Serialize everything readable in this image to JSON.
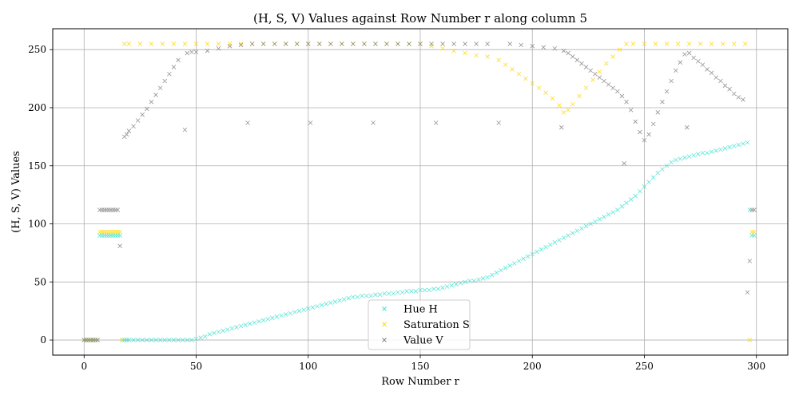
{
  "chart_data": {
    "type": "scatter",
    "title": "(H, S, V) Values against Row Number r along column 5",
    "xlabel": "Row Number r",
    "ylabel": "(H, S, V) Values",
    "xlim": [
      -14,
      314
    ],
    "ylim": [
      -13,
      268
    ],
    "xticks": [
      0,
      50,
      100,
      150,
      200,
      250,
      300
    ],
    "yticks": [
      0,
      50,
      100,
      150,
      200,
      250
    ],
    "grid": true,
    "legend": "bottom-center",
    "marker": "x",
    "series": [
      {
        "name": "Hue H",
        "color": "#40e0d0",
        "x": [
          0,
          1,
          2,
          3,
          4,
          5,
          6,
          7,
          8,
          9,
          10,
          11,
          12,
          13,
          14,
          15,
          16,
          17,
          18,
          19,
          20,
          22,
          24,
          26,
          28,
          30,
          32,
          34,
          36,
          38,
          40,
          42,
          44,
          46,
          48,
          50,
          52,
          54,
          56,
          58,
          60,
          62,
          64,
          66,
          68,
          70,
          72,
          74,
          76,
          78,
          80,
          82,
          84,
          86,
          88,
          90,
          92,
          94,
          96,
          98,
          100,
          102,
          104,
          106,
          108,
          110,
          112,
          114,
          116,
          118,
          120,
          122,
          124,
          126,
          128,
          130,
          132,
          134,
          136,
          138,
          140,
          142,
          144,
          146,
          148,
          150,
          152,
          154,
          156,
          158,
          160,
          162,
          164,
          166,
          168,
          170,
          172,
          174,
          176,
          178,
          180,
          182,
          184,
          186,
          188,
          190,
          192,
          194,
          196,
          198,
          200,
          202,
          204,
          206,
          208,
          210,
          212,
          214,
          216,
          218,
          220,
          222,
          224,
          226,
          228,
          230,
          232,
          234,
          236,
          238,
          240,
          242,
          244,
          246,
          248,
          250,
          252,
          254,
          256,
          258,
          260,
          262,
          264,
          266,
          268,
          270,
          272,
          274,
          276,
          278,
          280,
          282,
          284,
          286,
          288,
          290,
          292,
          294,
          296,
          297,
          298,
          299
        ],
        "y": [
          0,
          0,
          0,
          0,
          0,
          0,
          0,
          90,
          90,
          90,
          90,
          90,
          90,
          90,
          90,
          90,
          90,
          0,
          0,
          0,
          0,
          0,
          0,
          0,
          0,
          0,
          0,
          0,
          0,
          0,
          0,
          0,
          0,
          0,
          0,
          1,
          2,
          3,
          5,
          6,
          7,
          8,
          9,
          10,
          11,
          12,
          13,
          14,
          15,
          16,
          17,
          18,
          19,
          20,
          21,
          22,
          23,
          24,
          25,
          26,
          27,
          28,
          29,
          30,
          31,
          32,
          33,
          34,
          35,
          36,
          37,
          37,
          38,
          38,
          38,
          39,
          39,
          40,
          40,
          40,
          41,
          41,
          42,
          42,
          42,
          43,
          43,
          43,
          44,
          44,
          45,
          46,
          47,
          48,
          49,
          50,
          51,
          51,
          52,
          53,
          54,
          56,
          58,
          60,
          62,
          64,
          66,
          68,
          70,
          72,
          74,
          76,
          78,
          80,
          82,
          84,
          86,
          88,
          90,
          92,
          94,
          96,
          98,
          100,
          102,
          104,
          106,
          108,
          110,
          112,
          115,
          118,
          121,
          124,
          128,
          132,
          136,
          140,
          144,
          147,
          150,
          153,
          155,
          156,
          157,
          158,
          159,
          160,
          161,
          161,
          162,
          163,
          164,
          165,
          166,
          167,
          168,
          169,
          170,
          112,
          90,
          90
        ]
      },
      {
        "name": "Saturation S",
        "color": "#ffd700",
        "x": [
          0,
          1,
          2,
          3,
          4,
          5,
          6,
          7,
          8,
          9,
          10,
          11,
          12,
          13,
          14,
          15,
          16,
          17,
          18,
          20,
          25,
          30,
          35,
          40,
          45,
          50,
          55,
          60,
          65,
          70,
          75,
          80,
          85,
          90,
          95,
          100,
          105,
          110,
          115,
          120,
          125,
          130,
          135,
          140,
          145,
          150,
          155,
          160,
          165,
          170,
          175,
          180,
          185,
          188,
          191,
          194,
          197,
          200,
          203,
          206,
          209,
          212,
          214,
          216,
          218,
          221,
          224,
          227,
          230,
          233,
          236,
          239,
          242,
          245,
          250,
          255,
          260,
          265,
          270,
          275,
          280,
          285,
          290,
          295,
          297,
          298,
          299
        ],
        "y": [
          0,
          0,
          0,
          0,
          0,
          0,
          0,
          93,
          93,
          93,
          93,
          93,
          93,
          93,
          93,
          93,
          93,
          0,
          255,
          255,
          255,
          255,
          255,
          255,
          255,
          255,
          255,
          255,
          255,
          255,
          255,
          255,
          255,
          255,
          255,
          255,
          255,
          255,
          255,
          255,
          255,
          255,
          255,
          255,
          255,
          255,
          253,
          251,
          249,
          247,
          245,
          244,
          241,
          237,
          233,
          229,
          225,
          221,
          217,
          213,
          208,
          202,
          196,
          198,
          203,
          210,
          217,
          224,
          231,
          238,
          244,
          250,
          255,
          255,
          255,
          255,
          255,
          255,
          255,
          255,
          255,
          255,
          255,
          255,
          0,
          93,
          93
        ]
      },
      {
        "name": "Value V",
        "color": "#808080",
        "x": [
          0,
          1,
          2,
          3,
          4,
          5,
          6,
          7,
          8,
          9,
          10,
          11,
          12,
          13,
          14,
          15,
          16,
          18,
          19,
          20,
          22,
          24,
          26,
          28,
          30,
          32,
          34,
          36,
          38,
          40,
          42,
          45,
          46,
          48,
          50,
          55,
          60,
          65,
          70,
          73,
          75,
          80,
          85,
          90,
          95,
          100,
          101,
          105,
          110,
          115,
          120,
          125,
          129,
          130,
          135,
          140,
          145,
          150,
          155,
          157,
          160,
          165,
          170,
          175,
          180,
          185,
          190,
          195,
          200,
          205,
          210,
          213,
          214,
          216,
          218,
          220,
          222,
          224,
          226,
          228,
          230,
          232,
          234,
          236,
          238,
          240,
          241,
          242,
          244,
          246,
          248,
          250,
          252,
          254,
          256,
          258,
          260,
          262,
          264,
          266,
          268,
          269,
          270,
          272,
          274,
          276,
          278,
          280,
          282,
          284,
          286,
          288,
          290,
          292,
          294,
          296,
          297,
          298,
          299
        ],
        "y": [
          0,
          0,
          0,
          0,
          0,
          0,
          0,
          112,
          112,
          112,
          112,
          112,
          112,
          112,
          112,
          112,
          81,
          175,
          177,
          180,
          184,
          189,
          194,
          199,
          205,
          211,
          217,
          223,
          229,
          235,
          241,
          181,
          247,
          248,
          248,
          249,
          251,
          253,
          254,
          187,
          255,
          255,
          255,
          255,
          255,
          255,
          187,
          255,
          255,
          255,
          255,
          255,
          187,
          255,
          255,
          255,
          255,
          255,
          255,
          187,
          255,
          255,
          255,
          255,
          255,
          187,
          255,
          254,
          253,
          252,
          251,
          183,
          249,
          247,
          244,
          241,
          238,
          235,
          232,
          229,
          226,
          223,
          220,
          217,
          214,
          210,
          152,
          205,
          198,
          188,
          179,
          172,
          177,
          186,
          196,
          205,
          214,
          223,
          232,
          239,
          246,
          183,
          247,
          243,
          240,
          237,
          233,
          230,
          226,
          223,
          219,
          216,
          212,
          209,
          207,
          41,
          68,
          112,
          112
        ]
      }
    ]
  }
}
